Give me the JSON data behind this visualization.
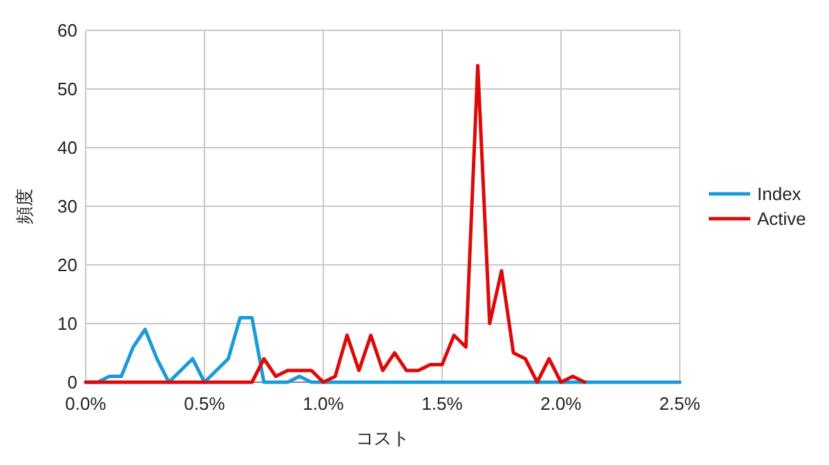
{
  "chart_data": {
    "type": "line",
    "xlabel": "コスト",
    "ylabel": "頻度",
    "x": [
      0,
      0.05,
      0.1,
      0.15,
      0.2,
      0.25,
      0.3,
      0.35,
      0.4,
      0.45,
      0.5,
      0.55,
      0.6,
      0.65,
      0.7,
      0.75,
      0.8,
      0.85,
      0.9,
      0.95,
      1.0,
      1.05,
      1.1,
      1.15,
      1.2,
      1.25,
      1.3,
      1.35,
      1.4,
      1.45,
      1.5,
      1.55,
      1.6,
      1.65,
      1.7,
      1.75,
      1.8,
      1.85,
      1.9,
      1.95,
      2.0,
      2.05,
      2.1,
      2.15,
      2.2,
      2.25,
      2.3,
      2.35,
      2.4,
      2.45,
      2.5
    ],
    "series": [
      {
        "name": "Index",
        "color": "#1a9ad6",
        "values": [
          0,
          0,
          1,
          1,
          6,
          9,
          4,
          0,
          2,
          4,
          0,
          2,
          4,
          11,
          11,
          0,
          0,
          0,
          1,
          0,
          0,
          0,
          0,
          0,
          0,
          0,
          0,
          0,
          0,
          0,
          0,
          0,
          0,
          0,
          0,
          0,
          0,
          0,
          0,
          0,
          0,
          0,
          0,
          0,
          0,
          0,
          0,
          0,
          0,
          0,
          0
        ]
      },
      {
        "name": "Active",
        "color": "#dd0a0a",
        "values": [
          0,
          0,
          0,
          0,
          0,
          0,
          0,
          0,
          0,
          0,
          0,
          0,
          0,
          0,
          0,
          4,
          1,
          2,
          2,
          2,
          0,
          1,
          8,
          2,
          8,
          2,
          5,
          2,
          2,
          3,
          3,
          8,
          6,
          54,
          10,
          19,
          5,
          4,
          0,
          4,
          0,
          1,
          0,
          null,
          null,
          null,
          null,
          null,
          null,
          null,
          null
        ]
      }
    ],
    "xlim": [
      0,
      2.5
    ],
    "xticks": [
      {
        "value": 0,
        "label": "0.0%"
      },
      {
        "value": 0.5,
        "label": "0.5%"
      },
      {
        "value": 1.0,
        "label": "1.0%"
      },
      {
        "value": 1.5,
        "label": "1.5%"
      },
      {
        "value": 2.0,
        "label": "2.0%"
      },
      {
        "value": 2.5,
        "label": "2.5%"
      }
    ],
    "ylim": [
      0,
      60
    ],
    "yticks": [
      0,
      10,
      20,
      30,
      40,
      50,
      60
    ],
    "grid": true,
    "legend": "right",
    "marker": "none",
    "line_style": "solid"
  }
}
